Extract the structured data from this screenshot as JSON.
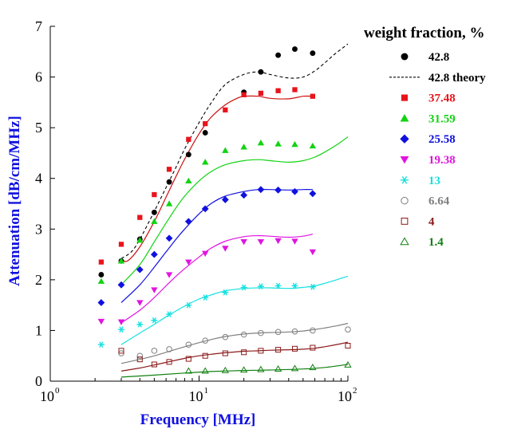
{
  "chart_data": {
    "type": "scatter",
    "title": "",
    "xlabel": "Frequency [MHz]",
    "ylabel": "Attenuation [dB/cm/MHz]",
    "xscale": "log",
    "xlim": [
      1,
      100
    ],
    "ylim": [
      0,
      7
    ],
    "x_ticks": [
      {
        "base": "10",
        "exp": "0"
      },
      {
        "base": "10",
        "exp": "1"
      },
      {
        "base": "10",
        "exp": "2"
      }
    ],
    "y_ticks": [
      "0",
      "1",
      "2",
      "3",
      "4",
      "5",
      "6",
      "7"
    ],
    "grid": false,
    "legend_title": "weight fraction, %",
    "legend_position": "right",
    "series": [
      {
        "name": "42.8",
        "marker": "circle-filled",
        "color": "#000000",
        "x": [
          2.2,
          3.0,
          4.0,
          5.0,
          6.3,
          8.5,
          11.0,
          20.0,
          26.0,
          34.0,
          44.0,
          58.0
        ],
        "y": [
          2.1,
          2.37,
          2.8,
          3.33,
          3.93,
          4.47,
          4.9,
          5.7,
          6.1,
          6.43,
          6.55,
          6.47
        ]
      },
      {
        "name": "42.8 theory",
        "marker": "dashed-line",
        "color": "#000000",
        "x": [
          3.0,
          3.5,
          4.0,
          5.0,
          6.0,
          7.0,
          8.0,
          10.0,
          12.0,
          15.0,
          20.0,
          25.0,
          30.0,
          40.0,
          50.0,
          60.0,
          70.0,
          80.0,
          90.0,
          100.0
        ],
        "y": [
          2.42,
          2.55,
          2.8,
          3.35,
          3.82,
          4.22,
          4.58,
          5.1,
          5.48,
          5.85,
          6.05,
          6.1,
          6.05,
          5.98,
          6.0,
          6.12,
          6.28,
          6.43,
          6.55,
          6.65
        ]
      },
      {
        "name": "37.48",
        "marker": "square-filled",
        "color": "#e8141c",
        "x": [
          2.2,
          3.0,
          4.0,
          5.0,
          6.3,
          8.5,
          11.0,
          15.0,
          20.0,
          26.0,
          34.0,
          44.0,
          58.0
        ],
        "y": [
          2.35,
          2.7,
          3.23,
          3.68,
          4.18,
          4.77,
          5.08,
          5.35,
          5.65,
          5.68,
          5.73,
          5.75,
          5.62
        ]
      },
      {
        "name": "37.48 theory",
        "marker": "line",
        "color": "#cc1010",
        "legend": false,
        "x": [
          3.0,
          3.3,
          4.0,
          5.0,
          6.0,
          7.0,
          8.0,
          10.0,
          12.0,
          15.0,
          18.0,
          20.0,
          25.0,
          30.0,
          40.0,
          50.0,
          58.0
        ],
        "y": [
          2.42,
          2.37,
          2.65,
          3.15,
          3.63,
          4.04,
          4.38,
          4.88,
          5.2,
          5.45,
          5.58,
          5.62,
          5.62,
          5.58,
          5.57,
          5.62,
          5.62
        ]
      },
      {
        "name": "31.59",
        "marker": "triangle-up-filled",
        "color": "#12d312",
        "x": [
          2.2,
          3.0,
          4.0,
          5.0,
          6.3,
          8.5,
          11.0,
          15.0,
          20.0,
          26.0,
          34.0,
          44.0,
          58.0
        ],
        "y": [
          1.97,
          2.37,
          2.78,
          3.15,
          3.5,
          3.95,
          4.32,
          4.55,
          4.62,
          4.7,
          4.68,
          4.67,
          4.64
        ]
      },
      {
        "name": "31.59 theory",
        "marker": "line",
        "color": "#12d312",
        "legend": false,
        "x": [
          3.0,
          4.0,
          5.0,
          6.0,
          7.0,
          8.0,
          10.0,
          12.0,
          15.0,
          20.0,
          25.0,
          30.0,
          40.0,
          50.0,
          60.0,
          70.0,
          80.0,
          90.0,
          100.0
        ],
        "y": [
          1.9,
          2.3,
          2.75,
          3.12,
          3.42,
          3.65,
          3.95,
          4.13,
          4.27,
          4.35,
          4.37,
          4.35,
          4.32,
          4.35,
          4.42,
          4.52,
          4.62,
          4.72,
          4.82
        ]
      },
      {
        "name": "25.58",
        "marker": "diamond-filled",
        "color": "#1010e0",
        "x": [
          2.2,
          3.0,
          4.0,
          5.0,
          6.3,
          8.5,
          11.0,
          15.0,
          20.0,
          26.0,
          34.0,
          44.0,
          58.0
        ],
        "y": [
          1.55,
          1.9,
          2.2,
          2.5,
          2.82,
          3.15,
          3.4,
          3.58,
          3.67,
          3.78,
          3.77,
          3.74,
          3.7
        ]
      },
      {
        "name": "25.58 theory",
        "marker": "line",
        "color": "#1010e0",
        "legend": false,
        "x": [
          3.0,
          4.0,
          5.0,
          6.0,
          7.0,
          8.0,
          10.0,
          12.0,
          15.0,
          20.0,
          25.0,
          30.0,
          40.0,
          50.0,
          58.0
        ],
        "y": [
          1.55,
          1.9,
          2.25,
          2.55,
          2.8,
          3.0,
          3.3,
          3.5,
          3.65,
          3.74,
          3.78,
          3.78,
          3.77,
          3.78,
          3.78
        ]
      },
      {
        "name": "19.38",
        "marker": "triangle-down-filled",
        "color": "#e014e0",
        "x": [
          2.2,
          3.0,
          4.0,
          5.0,
          6.3,
          8.5,
          11.0,
          15.0,
          20.0,
          26.0,
          34.0,
          44.0,
          58.0
        ],
        "y": [
          1.18,
          1.17,
          1.55,
          1.8,
          2.1,
          2.35,
          2.52,
          2.62,
          2.75,
          2.75,
          2.77,
          2.76,
          2.55
        ]
      },
      {
        "name": "19.38 theory",
        "marker": "line",
        "color": "#e014e0",
        "legend": false,
        "x": [
          3.0,
          4.0,
          5.0,
          6.0,
          7.0,
          8.0,
          10.0,
          12.0,
          15.0,
          20.0,
          25.0,
          30.0,
          40.0,
          50.0,
          58.0
        ],
        "y": [
          1.15,
          1.4,
          1.65,
          1.88,
          2.07,
          2.22,
          2.45,
          2.62,
          2.76,
          2.85,
          2.87,
          2.86,
          2.84,
          2.86,
          2.9
        ]
      },
      {
        "name": "13",
        "marker": "asterisk",
        "color": "#14e0e0",
        "x": [
          2.2,
          3.0,
          4.0,
          5.0,
          6.3,
          8.5,
          11.0,
          15.0,
          20.0,
          26.0,
          34.0,
          44.0,
          58.0
        ],
        "y": [
          0.72,
          1.02,
          1.12,
          1.2,
          1.32,
          1.5,
          1.65,
          1.75,
          1.85,
          1.87,
          1.88,
          1.88,
          1.86
        ]
      },
      {
        "name": "13 theory",
        "marker": "line",
        "color": "#14e0e0",
        "legend": false,
        "x": [
          3.0,
          4.0,
          5.0,
          6.0,
          8.0,
          10.0,
          12.0,
          15.0,
          20.0,
          25.0,
          30.0,
          40.0,
          50.0,
          60.0,
          70.0,
          80.0,
          90.0,
          100.0
        ],
        "y": [
          0.72,
          0.95,
          1.12,
          1.27,
          1.48,
          1.62,
          1.7,
          1.78,
          1.83,
          1.84,
          1.84,
          1.83,
          1.85,
          1.88,
          1.93,
          1.98,
          2.03,
          2.07
        ]
      },
      {
        "name": "6.64",
        "marker": "circle-open",
        "color": "#808080",
        "x": [
          3.0,
          4.0,
          5.0,
          6.3,
          8.5,
          11.0,
          15.0,
          20.0,
          26.0,
          34.0,
          44.0,
          58.0,
          100.0
        ],
        "y": [
          0.55,
          0.5,
          0.6,
          0.63,
          0.72,
          0.8,
          0.87,
          0.92,
          0.95,
          0.97,
          0.98,
          1.0,
          1.02
        ]
      },
      {
        "name": "6.64 theory",
        "marker": "line",
        "color": "#808080",
        "legend": false,
        "x": [
          3.0,
          4.0,
          5.0,
          6.0,
          8.0,
          10.0,
          12.0,
          15.0,
          20.0,
          25.0,
          30.0,
          40.0,
          50.0,
          60.0,
          70.0,
          80.0,
          90.0,
          100.0
        ],
        "y": [
          0.35,
          0.43,
          0.5,
          0.57,
          0.68,
          0.76,
          0.82,
          0.88,
          0.93,
          0.95,
          0.96,
          0.97,
          0.99,
          1.02,
          1.05,
          1.08,
          1.11,
          1.14
        ]
      },
      {
        "name": "4",
        "marker": "square-open",
        "color": "#8b1a1a",
        "x": [
          3.0,
          4.0,
          5.0,
          6.3,
          8.5,
          11.0,
          15.0,
          20.0,
          26.0,
          34.0,
          44.0,
          58.0,
          100.0
        ],
        "y": [
          0.6,
          0.43,
          0.33,
          0.38,
          0.44,
          0.5,
          0.55,
          0.57,
          0.6,
          0.62,
          0.64,
          0.66,
          0.7
        ]
      },
      {
        "name": "4 theory",
        "marker": "line",
        "color": "#8b1a1a",
        "legend": false,
        "x": [
          3.0,
          4.0,
          5.0,
          6.0,
          8.0,
          10.0,
          12.0,
          15.0,
          20.0,
          25.0,
          30.0,
          40.0,
          50.0,
          60.0,
          70.0,
          80.0,
          90.0,
          100.0
        ],
        "y": [
          0.2,
          0.26,
          0.32,
          0.37,
          0.45,
          0.5,
          0.53,
          0.56,
          0.59,
          0.6,
          0.61,
          0.62,
          0.63,
          0.65,
          0.68,
          0.71,
          0.74,
          0.77
        ]
      },
      {
        "name": "1.4",
        "marker": "triangle-up-open",
        "color": "#108010",
        "x": [
          8.5,
          11.0,
          15.0,
          20.0,
          26.0,
          34.0,
          44.0,
          58.0,
          100.0
        ],
        "y": [
          0.2,
          0.2,
          0.21,
          0.22,
          0.23,
          0.24,
          0.25,
          0.27,
          0.32
        ]
      },
      {
        "name": "1.4 theory",
        "marker": "line",
        "color": "#108010",
        "legend": false,
        "x": [
          3.0,
          5.0,
          8.0,
          12.0,
          20.0,
          30.0,
          50.0,
          70.0,
          100.0
        ],
        "y": [
          0.08,
          0.12,
          0.16,
          0.19,
          0.21,
          0.22,
          0.24,
          0.27,
          0.33
        ]
      }
    ]
  }
}
